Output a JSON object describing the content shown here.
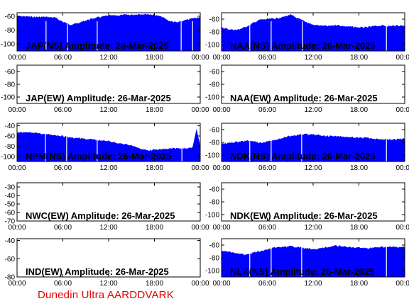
{
  "footer": "Dunedin Ultra AARDDVARK",
  "colors": {
    "fill": "#0000ff",
    "frame": "#000000",
    "marker": "#ffffff",
    "footer": "#e00000"
  },
  "time_ticks": [
    "00:00",
    "06:00",
    "12:00",
    "18:00",
    "00:00"
  ],
  "chart_data": [
    {
      "type": "area",
      "title": "JAP(NS) Amplitude: 26-Mar-2025",
      "xlabel": "",
      "ylabel": "",
      "xlim_hours": [
        0,
        24
      ],
      "ylim": [
        -110,
        -55
      ],
      "yticks": [
        -60,
        -80,
        -100
      ],
      "x": [
        0,
        1,
        2,
        3,
        4,
        5,
        6,
        7,
        8,
        9,
        10,
        11,
        12,
        13,
        14,
        15,
        16,
        17,
        18,
        19,
        20,
        21,
        22,
        23,
        24
      ],
      "y": [
        -60,
        -60,
        -61,
        -61,
        -61,
        -62,
        -68,
        -72,
        -70,
        -66,
        -63,
        -61,
        -59,
        -59,
        -58,
        -58,
        -57,
        -57,
        -58,
        -61,
        -67,
        -69,
        -66,
        -63,
        -61
      ],
      "markers_hours": [
        3.8,
        6.6,
        10.5,
        21.5,
        23.0
      ]
    },
    {
      "type": "area",
      "title": "NAA(NS) Amplitude: 26-Mar-2025",
      "xlabel": "",
      "ylabel": "",
      "xlim_hours": [
        0,
        24
      ],
      "ylim": [
        -110,
        -50
      ],
      "yticks": [
        -60,
        -80,
        -100
      ],
      "x": [
        0,
        1,
        2,
        3,
        4,
        5,
        6,
        7,
        8,
        9,
        10,
        11,
        12,
        13,
        14,
        15,
        16,
        17,
        18,
        19,
        20,
        21,
        22,
        23,
        24
      ],
      "y": [
        -73,
        -76,
        -77,
        -73,
        -67,
        -61,
        -60,
        -59,
        -57,
        -53,
        -59,
        -64,
        -69,
        -70,
        -71,
        -69,
        -71,
        -72,
        -73,
        -73,
        -71,
        -70,
        -71,
        -70,
        -70
      ],
      "markers_hours": [
        3.7,
        6.5,
        10.6,
        21.6
      ]
    },
    {
      "type": "area",
      "title": "JAP(EW) Amplitude: 26-Mar-2025",
      "xlabel": "",
      "ylabel": "",
      "xlim_hours": [
        0,
        24
      ],
      "ylim": [
        -110,
        -50
      ],
      "yticks": [
        -60,
        -80,
        -100
      ],
      "x": [],
      "y": [],
      "markers_hours": []
    },
    {
      "type": "area",
      "title": "NAA(EW) Amplitude: 26-Mar-2025",
      "xlabel": "",
      "ylabel": "",
      "xlim_hours": [
        0,
        24
      ],
      "ylim": [
        -110,
        -50
      ],
      "yticks": [
        -60,
        -80,
        -100
      ],
      "x": [],
      "y": [],
      "markers_hours": []
    },
    {
      "type": "area",
      "title": "NPM(NS) Amplitude: 26-Mar-2025",
      "xlabel": "",
      "ylabel": "",
      "xlim_hours": [
        0,
        24
      ],
      "ylim": [
        -110,
        -35
      ],
      "yticks": [
        -40,
        -60,
        -80,
        -100
      ],
      "x": [
        0,
        1,
        2,
        3,
        4,
        5,
        6,
        7,
        8,
        9,
        10,
        11,
        12,
        13,
        14,
        15,
        16,
        17,
        18,
        19,
        20,
        21,
        22,
        23,
        23.5,
        24
      ],
      "y": [
        -52,
        -53,
        -54,
        -55,
        -57,
        -58,
        -60,
        -63,
        -64,
        -66,
        -67,
        -69,
        -70,
        -73,
        -76,
        -78,
        -84,
        -88,
        -87,
        -86,
        -85,
        -84,
        -84,
        -83,
        -45,
        -80
      ],
      "markers_hours": [
        3.7,
        6.5,
        10.5,
        21.6
      ]
    },
    {
      "type": "area",
      "title": "NDK(NS) Amplitude: 26-Mar-2025",
      "xlabel": "",
      "ylabel": "",
      "xlim_hours": [
        0,
        24
      ],
      "ylim": [
        -110,
        -50
      ],
      "yticks": [
        -60,
        -80,
        -100
      ],
      "x": [
        0,
        1,
        2,
        3,
        4,
        5,
        6,
        7,
        8,
        9,
        10,
        11,
        12,
        13,
        14,
        15,
        16,
        17,
        18,
        19,
        20,
        21,
        22,
        23,
        24
      ],
      "y": [
        -82,
        -81,
        -79,
        -78,
        -77,
        -81,
        -79,
        -76,
        -73,
        -70,
        -68,
        -67,
        -68,
        -69,
        -70,
        -70,
        -71,
        -72,
        -73,
        -73,
        -74,
        -75,
        -76,
        -75,
        -74
      ],
      "markers_hours": [
        3.7,
        6.5,
        10.5,
        21.6
      ]
    },
    {
      "type": "area",
      "title": "NWC(EW) Amplitude: 26-Mar-2025",
      "xlabel": "",
      "ylabel": "",
      "xlim_hours": [
        0,
        24
      ],
      "ylim": [
        -70,
        -25
      ],
      "yticks": [
        -30,
        -40,
        -50,
        -60,
        -70
      ],
      "x": [],
      "y": [],
      "markers_hours": []
    },
    {
      "type": "area",
      "title": "NDK(EW) Amplitude: 26-Mar-2025",
      "xlabel": "",
      "ylabel": "",
      "xlim_hours": [
        0,
        24
      ],
      "ylim": [
        -110,
        -50
      ],
      "yticks": [
        -60,
        -80,
        -100
      ],
      "x": [],
      "y": [],
      "markers_hours": []
    },
    {
      "type": "area",
      "title": "IND(EW) Amplitude: 26-Mar-2025",
      "xlabel": "",
      "ylabel": "",
      "xlim_hours": [
        0,
        24
      ],
      "ylim": [
        -80,
        -38
      ],
      "yticks": [
        -40,
        -60,
        -80
      ],
      "x": [],
      "y": [],
      "markers_hours": []
    },
    {
      "type": "area",
      "title": "NLK(NS) Amplitude: 26-Mar-2025",
      "xlabel": "",
      "ylabel": "",
      "xlim_hours": [
        0,
        24
      ],
      "ylim": [
        -110,
        -50
      ],
      "yticks": [
        -60,
        -80,
        -100
      ],
      "x": [
        0,
        1,
        2,
        3,
        4,
        5,
        6,
        7,
        8,
        9,
        10,
        11,
        12,
        13,
        14,
        15,
        16,
        17,
        18,
        19,
        20,
        21,
        22,
        23,
        24
      ],
      "y": [
        -69,
        -70,
        -73,
        -75,
        -72,
        -70,
        -67,
        -64,
        -63,
        -62,
        -63,
        -65,
        -67,
        -65,
        -63,
        -61,
        -62,
        -64,
        -64,
        -65,
        -64,
        -63,
        -63,
        -63,
        -63
      ],
      "markers_hours": [
        3.7,
        6.5,
        10.5,
        21.6
      ]
    }
  ]
}
